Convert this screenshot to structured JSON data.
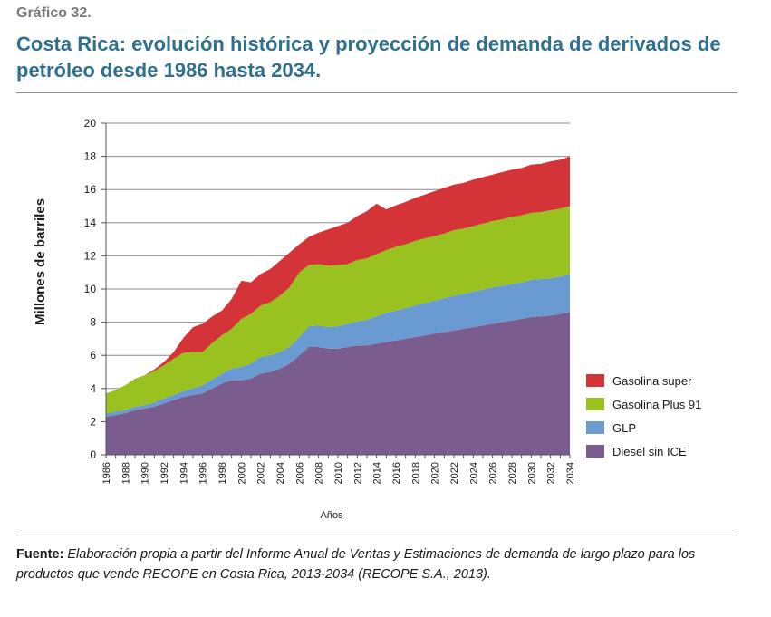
{
  "header": {
    "label": "Gráfico 32.",
    "title": "Costa Rica: evolución histórica y proyección de demanda de derivados de petróleo desde 1986 hasta 2034."
  },
  "footer": {
    "source_prefix": "Fuente:",
    "source_text": "Elaboración propia a partir del Informe Anual de Ventas y Estimaciones de demanda de largo plazo para los productos que vende RECOPE en Costa Rica, 2013-2034 (RECOPE S.A., 2013)."
  },
  "chart_data": {
    "type": "area",
    "stacked": true,
    "title": "",
    "xlabel": "Años",
    "ylabel": "Millones de barriles",
    "ylim": [
      0,
      20
    ],
    "yticks": [
      0,
      2,
      4,
      6,
      8,
      10,
      12,
      14,
      16,
      18,
      20
    ],
    "xtick_labels": [
      "1986",
      "1988",
      "1990",
      "1992",
      "1994",
      "1996",
      "1998",
      "2000",
      "2002",
      "2004",
      "2006",
      "2008",
      "2010",
      "2012",
      "2014",
      "2016",
      "2018",
      "2020",
      "2022",
      "2024",
      "2026",
      "2028",
      "2030",
      "2032",
      "2034"
    ],
    "grid": true,
    "legend_position": "right",
    "x": [
      1986,
      1987,
      1988,
      1989,
      1990,
      1991,
      1992,
      1993,
      1994,
      1995,
      1996,
      1997,
      1998,
      1999,
      2000,
      2001,
      2002,
      2003,
      2004,
      2005,
      2006,
      2007,
      2008,
      2009,
      2010,
      2011,
      2012,
      2013,
      2014,
      2015,
      2016,
      2017,
      2018,
      2019,
      2020,
      2021,
      2022,
      2023,
      2024,
      2025,
      2026,
      2027,
      2028,
      2029,
      2030,
      2031,
      2032,
      2033,
      2034
    ],
    "series": [
      {
        "name": "Diesel sin ICE",
        "color": "#7a5c8e",
        "values": [
          2.3,
          2.4,
          2.5,
          2.7,
          2.8,
          2.9,
          3.1,
          3.3,
          3.5,
          3.6,
          3.7,
          4.0,
          4.3,
          4.5,
          4.5,
          4.6,
          4.9,
          5.0,
          5.2,
          5.5,
          6.0,
          6.5,
          6.5,
          6.4,
          6.4,
          6.5,
          6.6,
          6.6,
          6.7,
          6.8,
          6.9,
          7.0,
          7.1,
          7.2,
          7.3,
          7.4,
          7.5,
          7.6,
          7.7,
          7.8,
          7.9,
          8.0,
          8.1,
          8.2,
          8.3,
          8.35,
          8.4,
          8.5,
          8.6
        ]
      },
      {
        "name": "GLP",
        "color": "#6a9ad2",
        "values": [
          0.2,
          0.2,
          0.2,
          0.2,
          0.2,
          0.25,
          0.3,
          0.3,
          0.35,
          0.4,
          0.5,
          0.55,
          0.6,
          0.7,
          0.8,
          0.9,
          1.0,
          1.0,
          1.0,
          1.0,
          1.1,
          1.25,
          1.3,
          1.3,
          1.35,
          1.4,
          1.45,
          1.55,
          1.65,
          1.75,
          1.8,
          1.85,
          1.9,
          1.95,
          2.0,
          2.05,
          2.1,
          2.1,
          2.15,
          2.15,
          2.2,
          2.2,
          2.2,
          2.2,
          2.25,
          2.25,
          2.25,
          2.25,
          2.3
        ]
      },
      {
        "name": "Gasolina Plus 91",
        "color": "#99c11f",
        "values": [
          1.2,
          1.3,
          1.5,
          1.7,
          1.8,
          1.9,
          2.0,
          2.2,
          2.3,
          2.2,
          2.0,
          2.2,
          2.3,
          2.4,
          2.9,
          3.0,
          3.1,
          3.2,
          3.4,
          3.6,
          3.9,
          3.7,
          3.7,
          3.7,
          3.7,
          3.6,
          3.7,
          3.7,
          3.75,
          3.8,
          3.85,
          3.85,
          3.9,
          3.9,
          3.9,
          3.9,
          3.95,
          3.95,
          3.95,
          4.0,
          4.0,
          4.0,
          4.05,
          4.05,
          4.05,
          4.05,
          4.1,
          4.1,
          4.1
        ]
      },
      {
        "name": "Gasolina super",
        "color": "#d43438",
        "values": [
          0,
          0,
          0,
          0,
          0,
          0.1,
          0.2,
          0.4,
          0.9,
          1.5,
          1.7,
          1.6,
          1.5,
          1.8,
          2.3,
          1.9,
          1.9,
          2.0,
          2.1,
          2.1,
          1.7,
          1.7,
          1.9,
          2.2,
          2.35,
          2.5,
          2.65,
          2.85,
          3.05,
          2.45,
          2.5,
          2.55,
          2.6,
          2.65,
          2.7,
          2.75,
          2.75,
          2.75,
          2.8,
          2.8,
          2.8,
          2.85,
          2.85,
          2.85,
          2.9,
          2.9,
          2.95,
          2.95,
          3.0
        ]
      }
    ],
    "legend_order": [
      "Gasolina super",
      "Gasolina Plus 91",
      "GLP",
      "Diesel sin ICE"
    ]
  }
}
